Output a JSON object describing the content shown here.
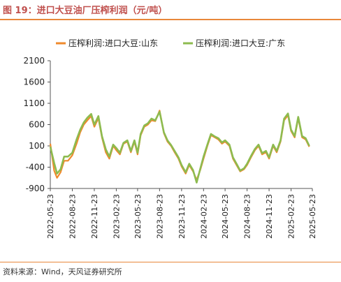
{
  "header": {
    "title": "图 19：进口大豆油厂压榨利润（元/吨）"
  },
  "footer": {
    "source": "资料来源：Wind，天风证券研究所"
  },
  "colors": {
    "accent": "#e8873a",
    "title": "#c0504d",
    "series_shandong": "#ef8a2c",
    "series_guangdong": "#8dbb4f"
  },
  "chart_data": {
    "type": "line",
    "title": "",
    "xlabel": "",
    "ylabel": "",
    "ylim": [
      -900,
      2100
    ],
    "yticks": [
      2100,
      1600,
      1100,
      600,
      100,
      -400,
      -900
    ],
    "xticks": [
      "2022-05-23",
      "2022-08-23",
      "2022-11-23",
      "2023-02-23",
      "2023-05-23",
      "2023-08-23",
      "2023-11-23",
      "2024-02-23",
      "2024-05-23",
      "2024-08-23",
      "2024-11-23",
      "2025-02-23",
      "2025-05-23"
    ],
    "legend_position": "top",
    "grid": false,
    "series": [
      {
        "name": "压榨利润:进口大豆:山东",
        "points": [
          [
            "2022-05-23",
            150
          ],
          [
            "2022-06-08",
            -480
          ],
          [
            "2022-06-20",
            -650
          ],
          [
            "2022-07-05",
            -520
          ],
          [
            "2022-07-20",
            -250
          ],
          [
            "2022-08-05",
            -250
          ],
          [
            "2022-08-23",
            -120
          ],
          [
            "2022-09-10",
            150
          ],
          [
            "2022-09-25",
            420
          ],
          [
            "2022-10-10",
            600
          ],
          [
            "2022-10-25",
            700
          ],
          [
            "2022-11-10",
            800
          ],
          [
            "2022-11-23",
            550
          ],
          [
            "2022-12-10",
            750
          ],
          [
            "2022-12-25",
            300
          ],
          [
            "2023-01-10",
            -50
          ],
          [
            "2023-01-25",
            -200
          ],
          [
            "2023-02-10",
            100
          ],
          [
            "2023-02-23",
            0
          ],
          [
            "2023-03-10",
            -100
          ],
          [
            "2023-03-25",
            150
          ],
          [
            "2023-04-10",
            200
          ],
          [
            "2023-04-25",
            -50
          ],
          [
            "2023-05-10",
            200
          ],
          [
            "2023-05-23",
            -100
          ],
          [
            "2023-06-05",
            350
          ],
          [
            "2023-06-20",
            550
          ],
          [
            "2023-07-05",
            600
          ],
          [
            "2023-07-20",
            700
          ],
          [
            "2023-08-05",
            680
          ],
          [
            "2023-08-23",
            930
          ],
          [
            "2023-09-10",
            400
          ],
          [
            "2023-09-25",
            200
          ],
          [
            "2023-10-10",
            100
          ],
          [
            "2023-10-25",
            -50
          ],
          [
            "2023-11-10",
            -200
          ],
          [
            "2023-11-23",
            -380
          ],
          [
            "2023-12-10",
            -550
          ],
          [
            "2023-12-25",
            -350
          ],
          [
            "2024-01-10",
            -500
          ],
          [
            "2024-01-25",
            -700
          ],
          [
            "2024-02-10",
            -450
          ],
          [
            "2024-02-23",
            -200
          ],
          [
            "2024-03-10",
            100
          ],
          [
            "2024-03-25",
            350
          ],
          [
            "2024-04-10",
            300
          ],
          [
            "2024-04-25",
            250
          ],
          [
            "2024-05-10",
            150
          ],
          [
            "2024-05-23",
            200
          ],
          [
            "2024-06-10",
            100
          ],
          [
            "2024-06-25",
            -200
          ],
          [
            "2024-07-10",
            -350
          ],
          [
            "2024-07-25",
            -500
          ],
          [
            "2024-08-10",
            -450
          ],
          [
            "2024-08-23",
            -350
          ],
          [
            "2024-09-10",
            -150
          ],
          [
            "2024-09-25",
            0
          ],
          [
            "2024-10-10",
            100
          ],
          [
            "2024-10-25",
            -100
          ],
          [
            "2024-11-10",
            -50
          ],
          [
            "2024-11-23",
            -200
          ],
          [
            "2024-12-10",
            100
          ],
          [
            "2024-12-25",
            -50
          ],
          [
            "2025-01-10",
            200
          ],
          [
            "2025-01-25",
            700
          ],
          [
            "2025-02-10",
            820
          ],
          [
            "2025-02-23",
            450
          ],
          [
            "2025-03-10",
            300
          ],
          [
            "2025-03-25",
            750
          ],
          [
            "2025-04-10",
            300
          ],
          [
            "2025-04-25",
            250
          ],
          [
            "2025-05-10",
            80
          ]
        ]
      },
      {
        "name": "压榨利润:进口大豆:广东",
        "points": [
          [
            "2022-05-23",
            80
          ],
          [
            "2022-06-08",
            -300
          ],
          [
            "2022-06-20",
            -550
          ],
          [
            "2022-07-05",
            -450
          ],
          [
            "2022-07-20",
            -150
          ],
          [
            "2022-08-05",
            -150
          ],
          [
            "2022-08-23",
            -60
          ],
          [
            "2022-09-10",
            250
          ],
          [
            "2022-09-25",
            480
          ],
          [
            "2022-10-10",
            650
          ],
          [
            "2022-10-25",
            760
          ],
          [
            "2022-11-10",
            850
          ],
          [
            "2022-11-23",
            600
          ],
          [
            "2022-12-10",
            800
          ],
          [
            "2022-12-25",
            330
          ],
          [
            "2023-01-10",
            20
          ],
          [
            "2023-01-25",
            -150
          ],
          [
            "2023-02-10",
            130
          ],
          [
            "2023-02-23",
            50
          ],
          [
            "2023-03-10",
            -60
          ],
          [
            "2023-03-25",
            170
          ],
          [
            "2023-04-10",
            230
          ],
          [
            "2023-04-25",
            -20
          ],
          [
            "2023-05-10",
            230
          ],
          [
            "2023-05-23",
            -60
          ],
          [
            "2023-06-05",
            380
          ],
          [
            "2023-06-20",
            580
          ],
          [
            "2023-07-05",
            630
          ],
          [
            "2023-07-20",
            740
          ],
          [
            "2023-08-05",
            700
          ],
          [
            "2023-08-23",
            900
          ],
          [
            "2023-09-10",
            420
          ],
          [
            "2023-09-25",
            230
          ],
          [
            "2023-10-10",
            120
          ],
          [
            "2023-10-25",
            -20
          ],
          [
            "2023-11-10",
            -170
          ],
          [
            "2023-11-23",
            -350
          ],
          [
            "2023-12-10",
            -520
          ],
          [
            "2023-12-25",
            -320
          ],
          [
            "2024-01-10",
            -470
          ],
          [
            "2024-01-25",
            -760
          ],
          [
            "2024-02-10",
            -420
          ],
          [
            "2024-02-23",
            -150
          ],
          [
            "2024-03-10",
            130
          ],
          [
            "2024-03-25",
            380
          ],
          [
            "2024-04-10",
            320
          ],
          [
            "2024-04-25",
            280
          ],
          [
            "2024-05-10",
            180
          ],
          [
            "2024-05-23",
            230
          ],
          [
            "2024-06-10",
            130
          ],
          [
            "2024-06-25",
            -170
          ],
          [
            "2024-07-10",
            -320
          ],
          [
            "2024-07-25",
            -480
          ],
          [
            "2024-08-10",
            -430
          ],
          [
            "2024-08-23",
            -320
          ],
          [
            "2024-09-10",
            -120
          ],
          [
            "2024-09-25",
            30
          ],
          [
            "2024-10-10",
            130
          ],
          [
            "2024-10-25",
            -70
          ],
          [
            "2024-11-10",
            -20
          ],
          [
            "2024-11-23",
            -170
          ],
          [
            "2024-12-10",
            130
          ],
          [
            "2024-12-25",
            -20
          ],
          [
            "2025-01-10",
            230
          ],
          [
            "2025-01-25",
            740
          ],
          [
            "2025-02-10",
            860
          ],
          [
            "2025-02-23",
            480
          ],
          [
            "2025-03-10",
            330
          ],
          [
            "2025-03-25",
            780
          ],
          [
            "2025-04-10",
            330
          ],
          [
            "2025-04-25",
            280
          ],
          [
            "2025-05-10",
            100
          ]
        ]
      }
    ]
  }
}
